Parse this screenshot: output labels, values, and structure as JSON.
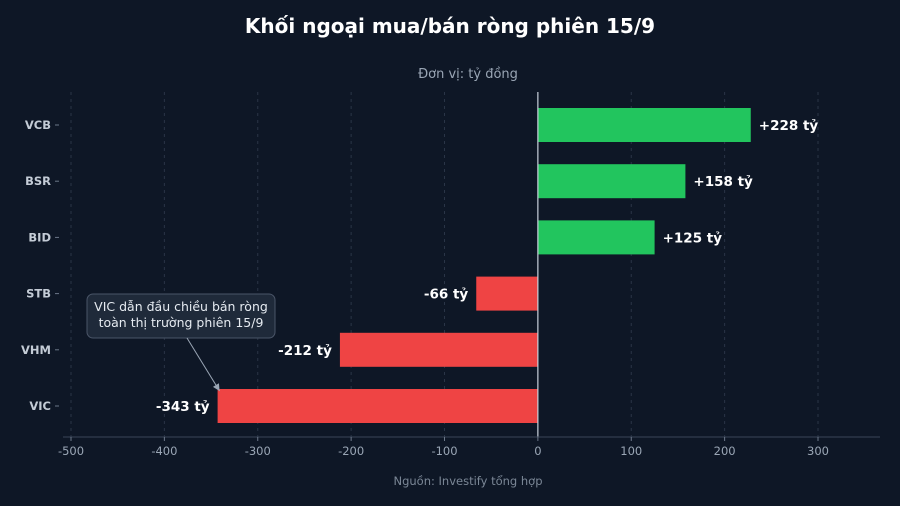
{
  "chart_data": {
    "type": "bar",
    "orientation": "horizontal",
    "title": "Khối ngoại mua/bán ròng phiên 15/9",
    "subtitle": "Đơn vị: tỷ đồng",
    "source": "Nguồn: Investify tổng hợp",
    "categories": [
      "VCB",
      "BSR",
      "BID",
      "STB",
      "VHM",
      "VIC"
    ],
    "values": [
      228,
      158,
      125,
      -66,
      -212,
      -343
    ],
    "value_labels": [
      "+228 tỷ",
      "+158 tỷ",
      "+125 tỷ",
      "-66 tỷ",
      "-212 tỷ",
      "-343 tỷ"
    ],
    "xlim": [
      -500,
      300
    ],
    "xticks": [
      -500,
      -400,
      -300,
      -200,
      -100,
      0,
      100,
      200,
      300
    ],
    "grid": "vertical",
    "colors": {
      "positive": "#22c55e",
      "negative": "#ef4444",
      "background": "#0e1726"
    },
    "annotation": {
      "target": "VIC",
      "lines": [
        "VIC dẫn đầu chiều bán ròng",
        "toàn thị trường phiên 15/9"
      ]
    }
  }
}
